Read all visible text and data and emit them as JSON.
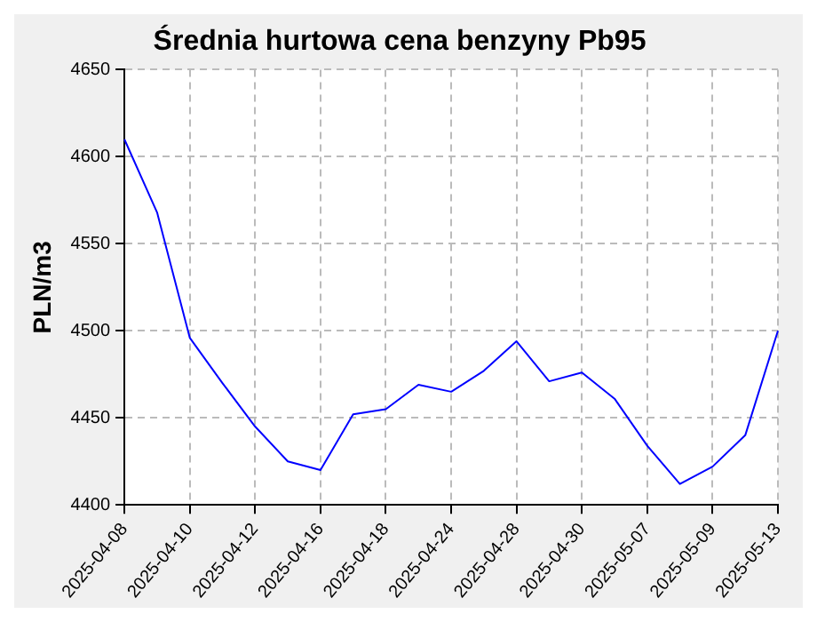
{
  "chart_data": {
    "type": "line",
    "title": "Średnia hurtowa cena benzyny Pb95",
    "ylabel": "PLN/m3",
    "categories": [
      "2025-04-08",
      null,
      "2025-04-10",
      null,
      "2025-04-12",
      null,
      "2025-04-16",
      null,
      "2025-04-18",
      null,
      "2025-04-24",
      null,
      "2025-04-28",
      null,
      "2025-04-30",
      null,
      "2025-05-07",
      null,
      "2025-05-09",
      null,
      "2025-05-13"
    ],
    "series": [
      {
        "color": "#0000ff",
        "values": [
          4610,
          4568,
          4496,
          4470,
          4445,
          4425,
          4420,
          4452,
          4455,
          4469,
          4465,
          4477,
          4494,
          4471,
          4476,
          4461,
          4434,
          4412,
          4422,
          4440,
          4500
        ]
      }
    ],
    "ylim": [
      4400,
      4650
    ],
    "yticks": [
      4400,
      4450,
      4500,
      4550,
      4600,
      4650
    ],
    "grid": true,
    "legend": false,
    "marker": "none",
    "line_style": "solid"
  }
}
